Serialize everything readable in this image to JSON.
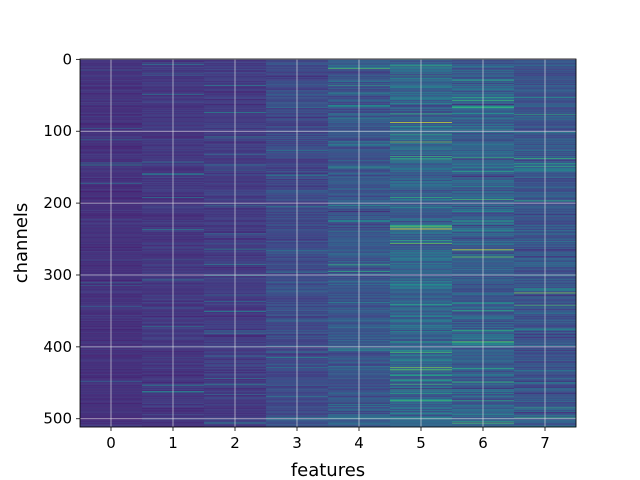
{
  "chart_data": {
    "type": "heatmap",
    "title": "",
    "xlabel": "features",
    "ylabel": "channels",
    "x_ticks": [
      0,
      1,
      2,
      3,
      4,
      5,
      6,
      7
    ],
    "y_ticks": [
      0,
      100,
      200,
      300,
      400,
      500
    ],
    "xlim": [
      -0.5,
      7.5
    ],
    "ylim": [
      511.5,
      -0.5
    ],
    "n_rows": 512,
    "n_cols": 8,
    "grid": true,
    "colormap": "viridis",
    "column_mean_intensity": [
      0.18,
      0.2,
      0.22,
      0.28,
      0.34,
      0.4,
      0.37,
      0.33
    ],
    "column_variability": [
      0.06,
      0.07,
      0.08,
      0.12,
      0.15,
      0.2,
      0.18,
      0.15
    ],
    "highlights": [
      {
        "feature": 5,
        "channel": 88,
        "value": 0.95
      },
      {
        "feature": 5,
        "channel": 236,
        "value": 1.0
      },
      {
        "feature": 5,
        "channel": 452,
        "value": 0.75
      },
      {
        "feature": 5,
        "channel": 140,
        "value": 0.7
      },
      {
        "feature": 6,
        "channel": 265,
        "value": 0.95
      },
      {
        "feature": 6,
        "channel": 98,
        "value": 0.65
      },
      {
        "feature": 6,
        "channel": 340,
        "value": 0.65
      },
      {
        "feature": 7,
        "channel": 325,
        "value": 0.85
      },
      {
        "feature": 7,
        "channel": 138,
        "value": 0.75
      },
      {
        "feature": 4,
        "channel": 115,
        "value": 0.6
      },
      {
        "feature": 4,
        "channel": 8,
        "value": 0.6
      },
      {
        "feature": 1,
        "channel": 372,
        "value": 0.5
      }
    ]
  },
  "colors": {
    "background": "#ffffff",
    "grid": "#e8e8e8",
    "axis": "#000000"
  }
}
